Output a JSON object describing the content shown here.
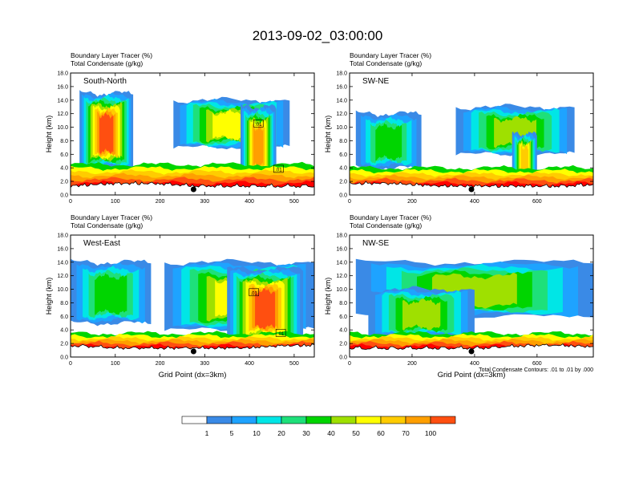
{
  "title": "2013-09-02_03:00:00",
  "palette": [
    "#ffffff",
    "#3a8ae6",
    "#1ea3ff",
    "#00e6e6",
    "#1ee07a",
    "#00d500",
    "#9fe000",
    "#ffff00",
    "#ffcc00",
    "#ff9f00",
    "#ff4f10",
    "#ff0000"
  ],
  "colorbar_labels": [
    "1",
    "5",
    "10",
    "20",
    "30",
    "40",
    "50",
    "60",
    "70",
    "100"
  ],
  "footnote": "Total Condensate Contours: .01 to .01 by .000",
  "chart_data": [
    {
      "type": "heatmap",
      "panel_label": "South-North",
      "title_lines": [
        "Boundary Layer Tracer   (%)",
        "Total Condensate   (g/kg)"
      ],
      "ylabel": "Height (km)",
      "xlabel": "",
      "xlim": [
        0,
        545
      ],
      "ylim": [
        0,
        18
      ],
      "xticks": [
        0,
        100,
        200,
        300,
        400,
        500
      ],
      "yticks": [
        "0.0",
        "2.0",
        "4.0",
        "6.0",
        "8.0",
        "10.0",
        "12.0",
        "14.0",
        "16.0",
        "18.0"
      ],
      "marker_x": 275,
      "contour_labels": [
        {
          "text": ".01",
          "x": 420,
          "y": 10.5
        },
        {
          "text": ".01",
          "x": 465,
          "y": 3.8
        }
      ],
      "bl_top_km": 4.5,
      "anvils": [
        {
          "x0": 20,
          "x1": 140,
          "y0": 4,
          "y1": 15,
          "peak": 10
        },
        {
          "x0": 230,
          "x1": 490,
          "y0": 7,
          "y1": 14,
          "peak": 7
        },
        {
          "x0": 380,
          "x1": 460,
          "y0": 2,
          "y1": 13,
          "peak": 9
        }
      ]
    },
    {
      "type": "heatmap",
      "panel_label": "SW-NE",
      "title_lines": [
        "Boundary Layer Tracer   (%)",
        "Total Condensate   (g/kg)"
      ],
      "ylabel": "Height (km)",
      "xlabel": "",
      "xlim": [
        0,
        780
      ],
      "ylim": [
        0,
        18
      ],
      "xticks": [
        0,
        200,
        400,
        600
      ],
      "yticks": [
        "0.0",
        "2.0",
        "4.0",
        "6.0",
        "8.0",
        "10.0",
        "12.0",
        "14.0",
        "16.0",
        "18.0"
      ],
      "marker_x": 390,
      "contour_labels": [],
      "bl_top_km": 4.0,
      "anvils": [
        {
          "x0": 20,
          "x1": 230,
          "y0": 4,
          "y1": 12,
          "peak": 5
        },
        {
          "x0": 340,
          "x1": 720,
          "y0": 6,
          "y1": 13,
          "peak": 6
        },
        {
          "x0": 520,
          "x1": 600,
          "y0": 2,
          "y1": 9,
          "peak": 8
        }
      ]
    },
    {
      "type": "heatmap",
      "panel_label": "West-East",
      "title_lines": [
        "Boundary Layer Tracer   (%)",
        "Total Condensate   (g/kg)"
      ],
      "ylabel": "Height (km)",
      "xlabel": "Grid Point (dx=3km)",
      "xlim": [
        0,
        545
      ],
      "ylim": [
        0,
        18
      ],
      "xticks": [
        0,
        100,
        200,
        300,
        400,
        500
      ],
      "yticks": [
        "0.0",
        "2.0",
        "4.0",
        "6.0",
        "8.0",
        "10.0",
        "12.0",
        "14.0",
        "16.0",
        "18.0"
      ],
      "marker_x": 275,
      "contour_labels": [
        {
          "text": ".01",
          "x": 410,
          "y": 9.5
        },
        {
          "text": ".01",
          "x": 470,
          "y": 3.5
        }
      ],
      "bl_top_km": 3.5,
      "anvils": [
        {
          "x0": 0,
          "x1": 180,
          "y0": 5,
          "y1": 14,
          "peak": 5
        },
        {
          "x0": 210,
          "x1": 545,
          "y0": 4,
          "y1": 14,
          "peak": 7
        },
        {
          "x0": 350,
          "x1": 520,
          "y0": 2,
          "y1": 13,
          "peak": 10
        }
      ]
    },
    {
      "type": "heatmap",
      "panel_label": "NW-SE",
      "title_lines": [
        "Boundary Layer Tracer   (%)",
        "Total Condensate   (g/kg)"
      ],
      "ylabel": "Height (km)",
      "xlabel": "Grid Point (dx=3km)",
      "xlim": [
        0,
        780
      ],
      "ylim": [
        0,
        18
      ],
      "xticks": [
        0,
        200,
        400,
        600
      ],
      "yticks": [
        "0.0",
        "2.0",
        "4.0",
        "6.0",
        "8.0",
        "10.0",
        "12.0",
        "14.0",
        "16.0",
        "18.0"
      ],
      "marker_x": 390,
      "contour_labels": [],
      "bl_top_km": 3.5,
      "anvils": [
        {
          "x0": 20,
          "x1": 780,
          "y0": 6,
          "y1": 14,
          "peak": 6
        },
        {
          "x0": 60,
          "x1": 400,
          "y0": 3,
          "y1": 10,
          "peak": 6
        }
      ]
    }
  ]
}
